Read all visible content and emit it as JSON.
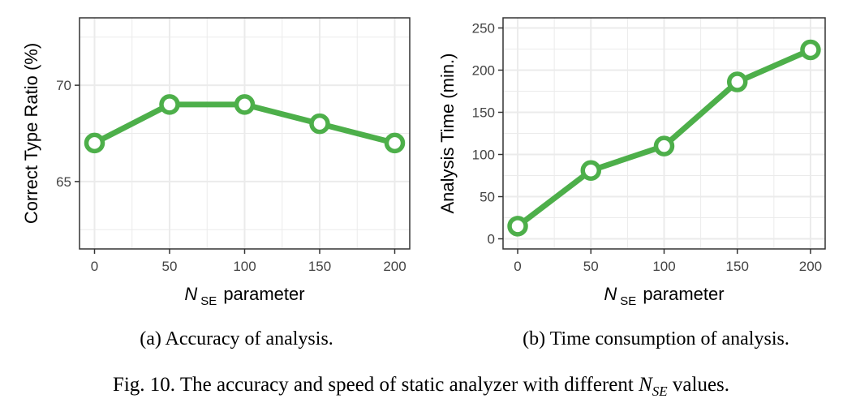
{
  "chart_data": [
    {
      "type": "line",
      "ylabel": "Correct Type Ratio (%)",
      "xlabel": {
        "symbol": "N",
        "subscript": "SE",
        "suffix": "parameter"
      },
      "x": [
        0,
        50,
        100,
        150,
        200
      ],
      "y": [
        67,
        69,
        69,
        68,
        67
      ],
      "xlim": [
        -10,
        210
      ],
      "ylim": [
        61.5,
        73.5
      ],
      "xticks": [
        "0",
        "50",
        "100",
        "150",
        "200"
      ],
      "yticks": [
        "65",
        "70"
      ],
      "ytick_values": [
        65,
        70
      ],
      "grid": true,
      "color": "#4daf4a",
      "caption": "(a) Accuracy of analysis."
    },
    {
      "type": "line",
      "ylabel": "Analysis Time (min.)",
      "xlabel": {
        "symbol": "N",
        "subscript": "SE",
        "suffix": "parameter"
      },
      "x": [
        0,
        50,
        100,
        150,
        200
      ],
      "y": [
        15,
        81,
        110,
        186,
        224
      ],
      "xlim": [
        -10,
        210
      ],
      "ylim": [
        -12,
        262
      ],
      "xticks": [
        "0",
        "50",
        "100",
        "150",
        "200"
      ],
      "yticks": [
        "0",
        "50",
        "100",
        "150",
        "200",
        "250"
      ],
      "ytick_values": [
        0,
        50,
        100,
        150,
        200,
        250
      ],
      "grid": true,
      "color": "#4daf4a",
      "caption": "(b) Time consumption of analysis."
    }
  ],
  "figure_caption": {
    "prefix": "Fig. 10.  The accuracy and speed of static analyzer with different ",
    "symbol": "N",
    "subscript": "SE",
    "suffix": " values."
  }
}
